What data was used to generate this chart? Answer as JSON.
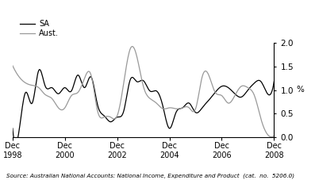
{
  "title": "",
  "ylabel_right": "%",
  "source_text": "Source: Australian National Accounts: National Income, Expenditure and Product  (cat.  no.  5206.0)",
  "legend_SA": "SA",
  "legend_Aust": "Aust.",
  "color_SA": "#000000",
  "color_Aust": "#999999",
  "ylim": [
    0.0,
    2.0
  ],
  "yticks": [
    0.0,
    0.5,
    1.0,
    1.5,
    2.0
  ],
  "xtick_labels": [
    "Dec\n1998",
    "Dec\n2000",
    "Dec\n2002",
    "Dec\n2004",
    "Dec\n2006",
    "Dec\n2008"
  ],
  "xtick_positions": [
    0,
    8,
    16,
    24,
    32,
    40
  ],
  "SA_x": [
    0,
    1,
    2,
    3,
    4,
    5,
    6,
    7,
    8,
    9,
    10,
    11,
    12,
    13,
    14,
    15,
    16,
    17,
    18,
    19,
    20,
    21,
    22,
    23,
    24,
    25,
    26,
    27,
    28,
    29,
    30,
    31,
    32,
    33,
    34,
    35,
    36,
    37,
    38,
    39,
    40
  ],
  "SA_y": [
    0.18,
    0.14,
    0.95,
    0.72,
    1.42,
    1.08,
    1.05,
    0.92,
    1.05,
    0.98,
    1.32,
    1.05,
    1.28,
    0.68,
    0.45,
    0.32,
    0.42,
    0.55,
    1.22,
    1.18,
    1.2,
    0.98,
    0.98,
    0.65,
    0.18,
    0.52,
    0.62,
    0.72,
    0.52,
    0.62,
    0.78,
    0.95,
    1.08,
    1.05,
    0.92,
    0.85,
    1.0,
    1.15,
    1.18,
    0.92,
    1.18
  ],
  "Aust_x": [
    0,
    1,
    2,
    3,
    4,
    5,
    6,
    7,
    8,
    9,
    10,
    11,
    12,
    13,
    14,
    15,
    16,
    17,
    18,
    19,
    20,
    21,
    22,
    23,
    24,
    25,
    26,
    27,
    28,
    29,
    30,
    31,
    32,
    33,
    34,
    35,
    36,
    37,
    38,
    39,
    40
  ],
  "Aust_y": [
    1.52,
    1.28,
    1.15,
    1.1,
    1.05,
    0.9,
    0.82,
    0.62,
    0.62,
    0.88,
    0.95,
    1.25,
    1.32,
    0.55,
    0.42,
    0.42,
    0.45,
    1.15,
    1.88,
    1.72,
    1.08,
    0.82,
    0.72,
    0.6,
    0.62,
    0.6,
    0.62,
    0.62,
    0.6,
    1.28,
    1.32,
    0.95,
    0.88,
    0.72,
    0.88,
    1.08,
    1.05,
    0.88,
    0.38,
    0.05,
    0.02
  ]
}
